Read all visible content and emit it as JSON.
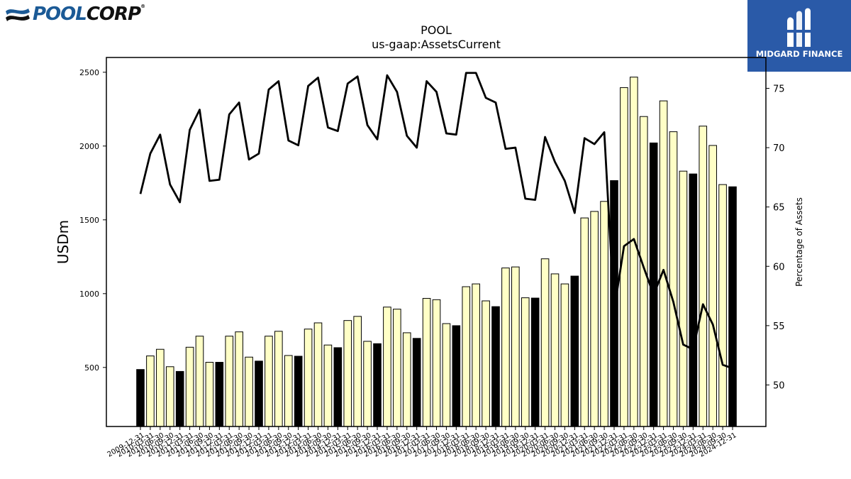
{
  "branding": {
    "company_logo_left": "POOL",
    "company_logo_right": "CORP",
    "company_logo_mark": "®",
    "partner_logo_text": "MIDGARD FINANCE"
  },
  "chart_data": {
    "type": "bar",
    "title": "POOL",
    "subtitle": "us-gaap:AssetsCurrent",
    "ylabel": "USDm",
    "y2label": "Percentage of Assets",
    "ylim": [
      100,
      2600
    ],
    "y2lim": [
      46.5,
      77.6
    ],
    "yticks": [
      500,
      1000,
      1500,
      2000,
      2500
    ],
    "y2ticks": [
      50,
      55,
      60,
      65,
      70,
      75
    ],
    "colors": {
      "bar_q4": "#000000",
      "bar_other": "#ffffc6",
      "line": "#000000"
    },
    "categories": [
      "2009-12-31",
      "2010-03-31",
      "2010-06-30",
      "2010-09-30",
      "2010-12-31",
      "2011-03-31",
      "2011-06-30",
      "2011-09-30",
      "2011-12-31",
      "2012-03-31",
      "2012-06-30",
      "2012-09-30",
      "2012-12-31",
      "2013-03-31",
      "2013-06-30",
      "2013-09-30",
      "2013-12-31",
      "2014-03-31",
      "2014-06-30",
      "2014-09-30",
      "2014-12-31",
      "2015-03-31",
      "2015-06-30",
      "2015-09-30",
      "2015-12-31",
      "2016-03-31",
      "2016-06-30",
      "2016-09-30",
      "2016-12-31",
      "2017-03-31",
      "2017-06-30",
      "2017-09-30",
      "2017-12-31",
      "2018-03-31",
      "2018-06-30",
      "2018-09-30",
      "2018-12-31",
      "2019-03-31",
      "2019-06-30",
      "2019-09-30",
      "2019-12-31",
      "2020-03-31",
      "2020-06-30",
      "2020-09-30",
      "2020-12-31",
      "2021-03-31",
      "2021-06-30",
      "2021-09-30",
      "2021-12-31",
      "2022-03-31",
      "2022-06-30",
      "2022-09-30",
      "2022-12-31",
      "2023-03-31",
      "2023-06-30",
      "2023-09-30",
      "2023-12-31",
      "2024-03-31",
      "2024-06-30",
      "2024-09-30",
      "2024-12-31"
    ],
    "series": [
      {
        "type": "bar",
        "values": [
          486,
          578,
          623,
          505,
          473,
          637,
          712,
          535,
          535,
          712,
          741,
          570,
          543,
          712,
          745,
          581,
          576,
          760,
          802,
          652,
          634,
          818,
          846,
          677,
          661,
          909,
          895,
          735,
          697,
          968,
          959,
          797,
          783,
          1047,
          1066,
          951,
          912,
          1174,
          1181,
          972,
          970,
          1236,
          1134,
          1066,
          1119,
          1513,
          1557,
          1625,
          1766,
          2396,
          2467,
          2200,
          2021,
          2306,
          2097,
          1830,
          1811,
          2135,
          2004,
          1739,
          1724
        ]
      },
      {
        "type": "line",
        "axis": "right",
        "values": [
          66.1,
          69.5,
          71.1,
          66.9,
          65.4,
          71.5,
          73.2,
          67.2,
          67.3,
          72.8,
          73.8,
          69.0,
          69.5,
          74.9,
          75.6,
          70.6,
          70.2,
          75.2,
          75.9,
          71.7,
          71.4,
          75.4,
          76.0,
          71.9,
          70.7,
          76.1,
          74.7,
          71.0,
          70.0,
          75.6,
          74.7,
          71.2,
          71.1,
          76.3,
          76.3,
          74.2,
          73.8,
          69.9,
          70.0,
          65.7,
          65.6,
          70.9,
          68.8,
          67.2,
          64.5,
          70.8,
          70.3,
          71.3,
          56.3,
          61.7,
          62.3,
          59.9,
          57.6,
          59.7,
          57.0,
          53.4,
          53.0,
          56.8,
          55.1,
          51.7,
          51.4
        ]
      }
    ]
  }
}
